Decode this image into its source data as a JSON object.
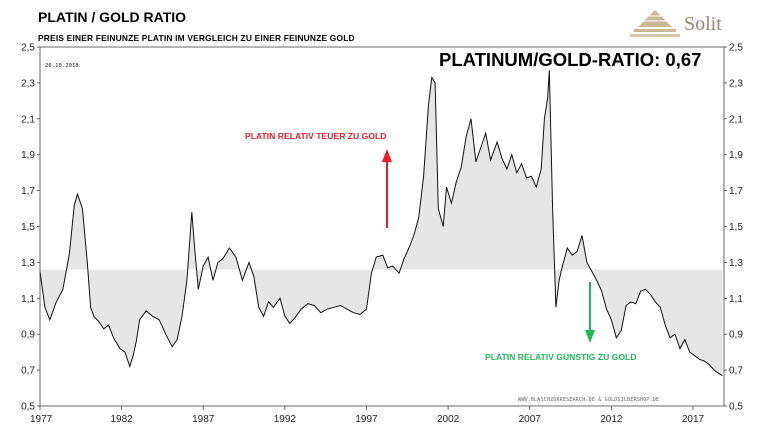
{
  "header": {
    "title": "PLATIN / GOLD RATIO",
    "subtitle": "PREIS EINER FEINUNZE PLATIN IM VERGLEICH ZU EINER FEINUNZE GOLD",
    "ratio_label": "PLATINUM/GOLD-RATIO: 0,67",
    "date": "26.10.2018"
  },
  "logo": {
    "text": "Solit",
    "color": "#9a8870",
    "icon": "pyramid-logo-icon"
  },
  "annotations": {
    "expensive": {
      "text": "PLATIN RELATIV TEUER ZU GOLD",
      "color": "#ee1c25"
    },
    "cheap": {
      "text": "PLATIN RELATIV GÜNSTIG ZU GOLD",
      "color": "#1db954"
    }
  },
  "source": "WWW.BLASCHZOKRESEARCH.DE  &  GOLDSILBERSHOP.DE",
  "chart_data": {
    "type": "line",
    "x_tick_labels": [
      "1977",
      "1982",
      "1987",
      "1992",
      "1997",
      "2002",
      "2007",
      "2012",
      "2017"
    ],
    "y_tick_labels": [
      "2,5",
      "2,3",
      "2,1",
      "1,9",
      "1,7",
      "1,5",
      "1,3",
      "1,1",
      "0,9",
      "0,7",
      "0,5"
    ],
    "xlim": [
      1977,
      2018.9
    ],
    "ylim": [
      0.5,
      2.5
    ],
    "fill_baseline": 1.26,
    "grid": false,
    "line_color": "#111111",
    "fill_color": "#e6e6e6",
    "series": [
      {
        "x": [
          1977.0,
          1977.3,
          1977.6,
          1978.0,
          1978.4,
          1978.8,
          1979.1,
          1979.3,
          1979.6,
          1979.9,
          1980.1,
          1980.3,
          1980.6,
          1980.9,
          1981.2,
          1981.5,
          1981.9,
          1982.2,
          1982.5,
          1982.7,
          1982.9,
          1983.1,
          1983.5,
          1983.9,
          1984.3,
          1984.7,
          1985.1,
          1985.4,
          1985.7,
          1986.0,
          1986.3,
          1986.5,
          1986.7,
          1987.0,
          1987.3,
          1987.6,
          1987.9,
          1988.2,
          1988.6,
          1989.0,
          1989.4,
          1989.8,
          1990.1,
          1990.4,
          1990.7,
          1991.0,
          1991.3,
          1991.7,
          1992.0,
          1992.3,
          1992.6,
          1993.0,
          1993.4,
          1993.8,
          1994.2,
          1994.6,
          1995.0,
          1995.4,
          1995.8,
          1996.2,
          1996.6,
          1997.0,
          1997.3,
          1997.6,
          1998.0,
          1998.3,
          1998.6,
          1999.0,
          1999.3,
          1999.6,
          1999.9,
          2000.2,
          2000.5,
          2000.8,
          2001.0,
          2001.2,
          2001.4,
          2001.7,
          2001.9,
          2002.2,
          2002.5,
          2002.8,
          2003.1,
          2003.4,
          2003.7,
          2004.0,
          2004.3,
          2004.6,
          2005.0,
          2005.3,
          2005.6,
          2005.9,
          2006.2,
          2006.5,
          2006.8,
          2007.1,
          2007.4,
          2007.7,
          2007.9,
          2008.1,
          2008.2,
          2008.4,
          2008.6,
          2008.8,
          2009.0,
          2009.3,
          2009.6,
          2009.9,
          2010.2,
          2010.5,
          2010.8,
          2011.1,
          2011.4,
          2011.7,
          2012.0,
          2012.3,
          2012.6,
          2012.9,
          2013.2,
          2013.5,
          2013.8,
          2014.1,
          2014.4,
          2014.7,
          2015.0,
          2015.3,
          2015.6,
          2015.9,
          2016.2,
          2016.5,
          2016.8,
          2017.1,
          2017.4,
          2017.7,
          2018.0,
          2018.3,
          2018.6,
          2018.8
        ],
        "y": [
          1.25,
          1.05,
          0.98,
          1.08,
          1.15,
          1.35,
          1.62,
          1.68,
          1.6,
          1.3,
          1.05,
          1.0,
          0.97,
          0.93,
          0.95,
          0.88,
          0.82,
          0.8,
          0.72,
          0.78,
          0.86,
          0.98,
          1.03,
          1.0,
          0.98,
          0.9,
          0.83,
          0.87,
          1.0,
          1.2,
          1.58,
          1.35,
          1.15,
          1.28,
          1.33,
          1.2,
          1.3,
          1.32,
          1.38,
          1.33,
          1.2,
          1.3,
          1.22,
          1.05,
          1.0,
          1.08,
          1.05,
          1.1,
          1.0,
          0.96,
          0.99,
          1.04,
          1.07,
          1.06,
          1.02,
          1.04,
          1.05,
          1.06,
          1.04,
          1.02,
          1.01,
          1.04,
          1.24,
          1.33,
          1.34,
          1.27,
          1.28,
          1.24,
          1.32,
          1.38,
          1.45,
          1.55,
          1.78,
          2.18,
          2.33,
          2.3,
          1.6,
          1.5,
          1.72,
          1.63,
          1.75,
          1.83,
          2.0,
          2.1,
          1.86,
          1.94,
          2.02,
          1.87,
          1.97,
          1.88,
          1.82,
          1.9,
          1.8,
          1.85,
          1.77,
          1.78,
          1.72,
          1.82,
          2.1,
          2.22,
          2.37,
          1.6,
          1.05,
          1.2,
          1.28,
          1.38,
          1.34,
          1.36,
          1.45,
          1.3,
          1.25,
          1.2,
          1.14,
          1.04,
          0.98,
          0.88,
          0.92,
          1.06,
          1.08,
          1.07,
          1.14,
          1.15,
          1.12,
          1.08,
          1.05,
          0.95,
          0.88,
          0.9,
          0.82,
          0.87,
          0.8,
          0.78,
          0.76,
          0.75,
          0.73,
          0.7,
          0.68,
          0.67
        ]
      }
    ]
  }
}
